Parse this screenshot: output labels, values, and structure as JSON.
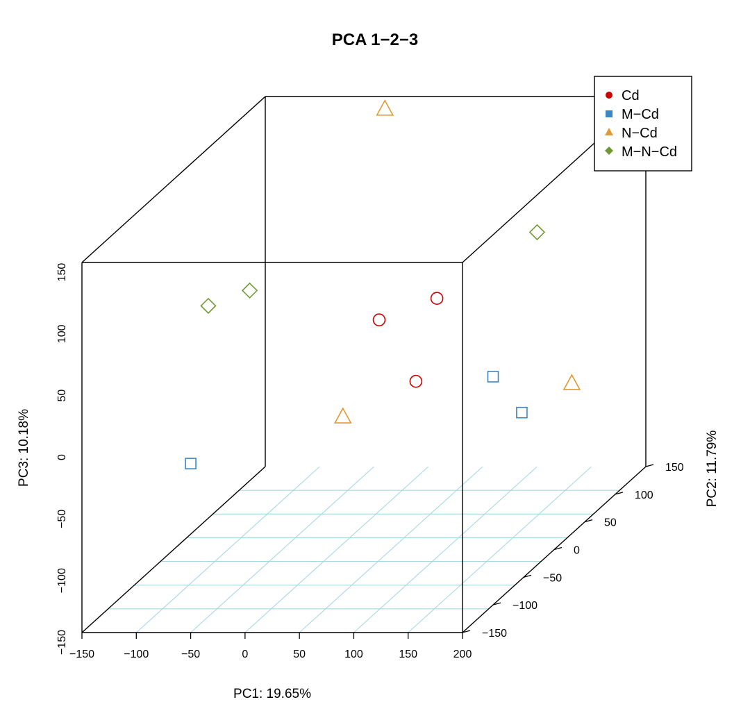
{
  "chart_data": {
    "type": "scatter",
    "title": "PCA  1−2−3",
    "xlabel": "PC1: 19.65%",
    "ylabel": "PC2: 11.79%",
    "zlabel": "PC3: 10.18%",
    "xlim": [
      -150,
      200
    ],
    "ylim": [
      -150,
      150
    ],
    "zlim": [
      -150,
      150
    ],
    "x_ticks": [
      "−150",
      "−100",
      "−50",
      "0",
      "50",
      "100",
      "150",
      "200"
    ],
    "y_ticks": [
      "−150",
      "−100",
      "−50",
      "0",
      "50",
      "100",
      "150"
    ],
    "z_ticks": [
      "−150",
      "−100",
      "−50",
      "0",
      "50",
      "100",
      "150"
    ],
    "legend_position": "top-right",
    "grid": true,
    "grid_color": "#a6d8e0",
    "series": [
      {
        "name": "Cd",
        "marker": "circle",
        "color": "#cc0000",
        "points": [
          [
            50,
            75,
            20
          ],
          [
            25,
            25,
            25
          ],
          [
            115,
            -75,
            20
          ]
        ]
      },
      {
        "name": "M−Cd",
        "marker": "square",
        "color": "#3b86c4",
        "points": [
          [
            -50,
            -150,
            -13
          ],
          [
            100,
            125,
            -95
          ],
          [
            200,
            -100,
            35
          ]
        ]
      },
      {
        "name": "N−Cd",
        "marker": "triangle",
        "color": "#e09a35",
        "points": [
          [
            -40,
            150,
            140
          ],
          [
            90,
            -150,
            25
          ],
          [
            160,
            100,
            -60
          ]
        ]
      },
      {
        "name": "M−N−Cd",
        "marker": "diamond",
        "color": "#6f9a33",
        "points": [
          [
            -80,
            0,
            60
          ],
          [
            -90,
            -50,
            70
          ],
          [
            100,
            150,
            40
          ]
        ]
      }
    ]
  }
}
